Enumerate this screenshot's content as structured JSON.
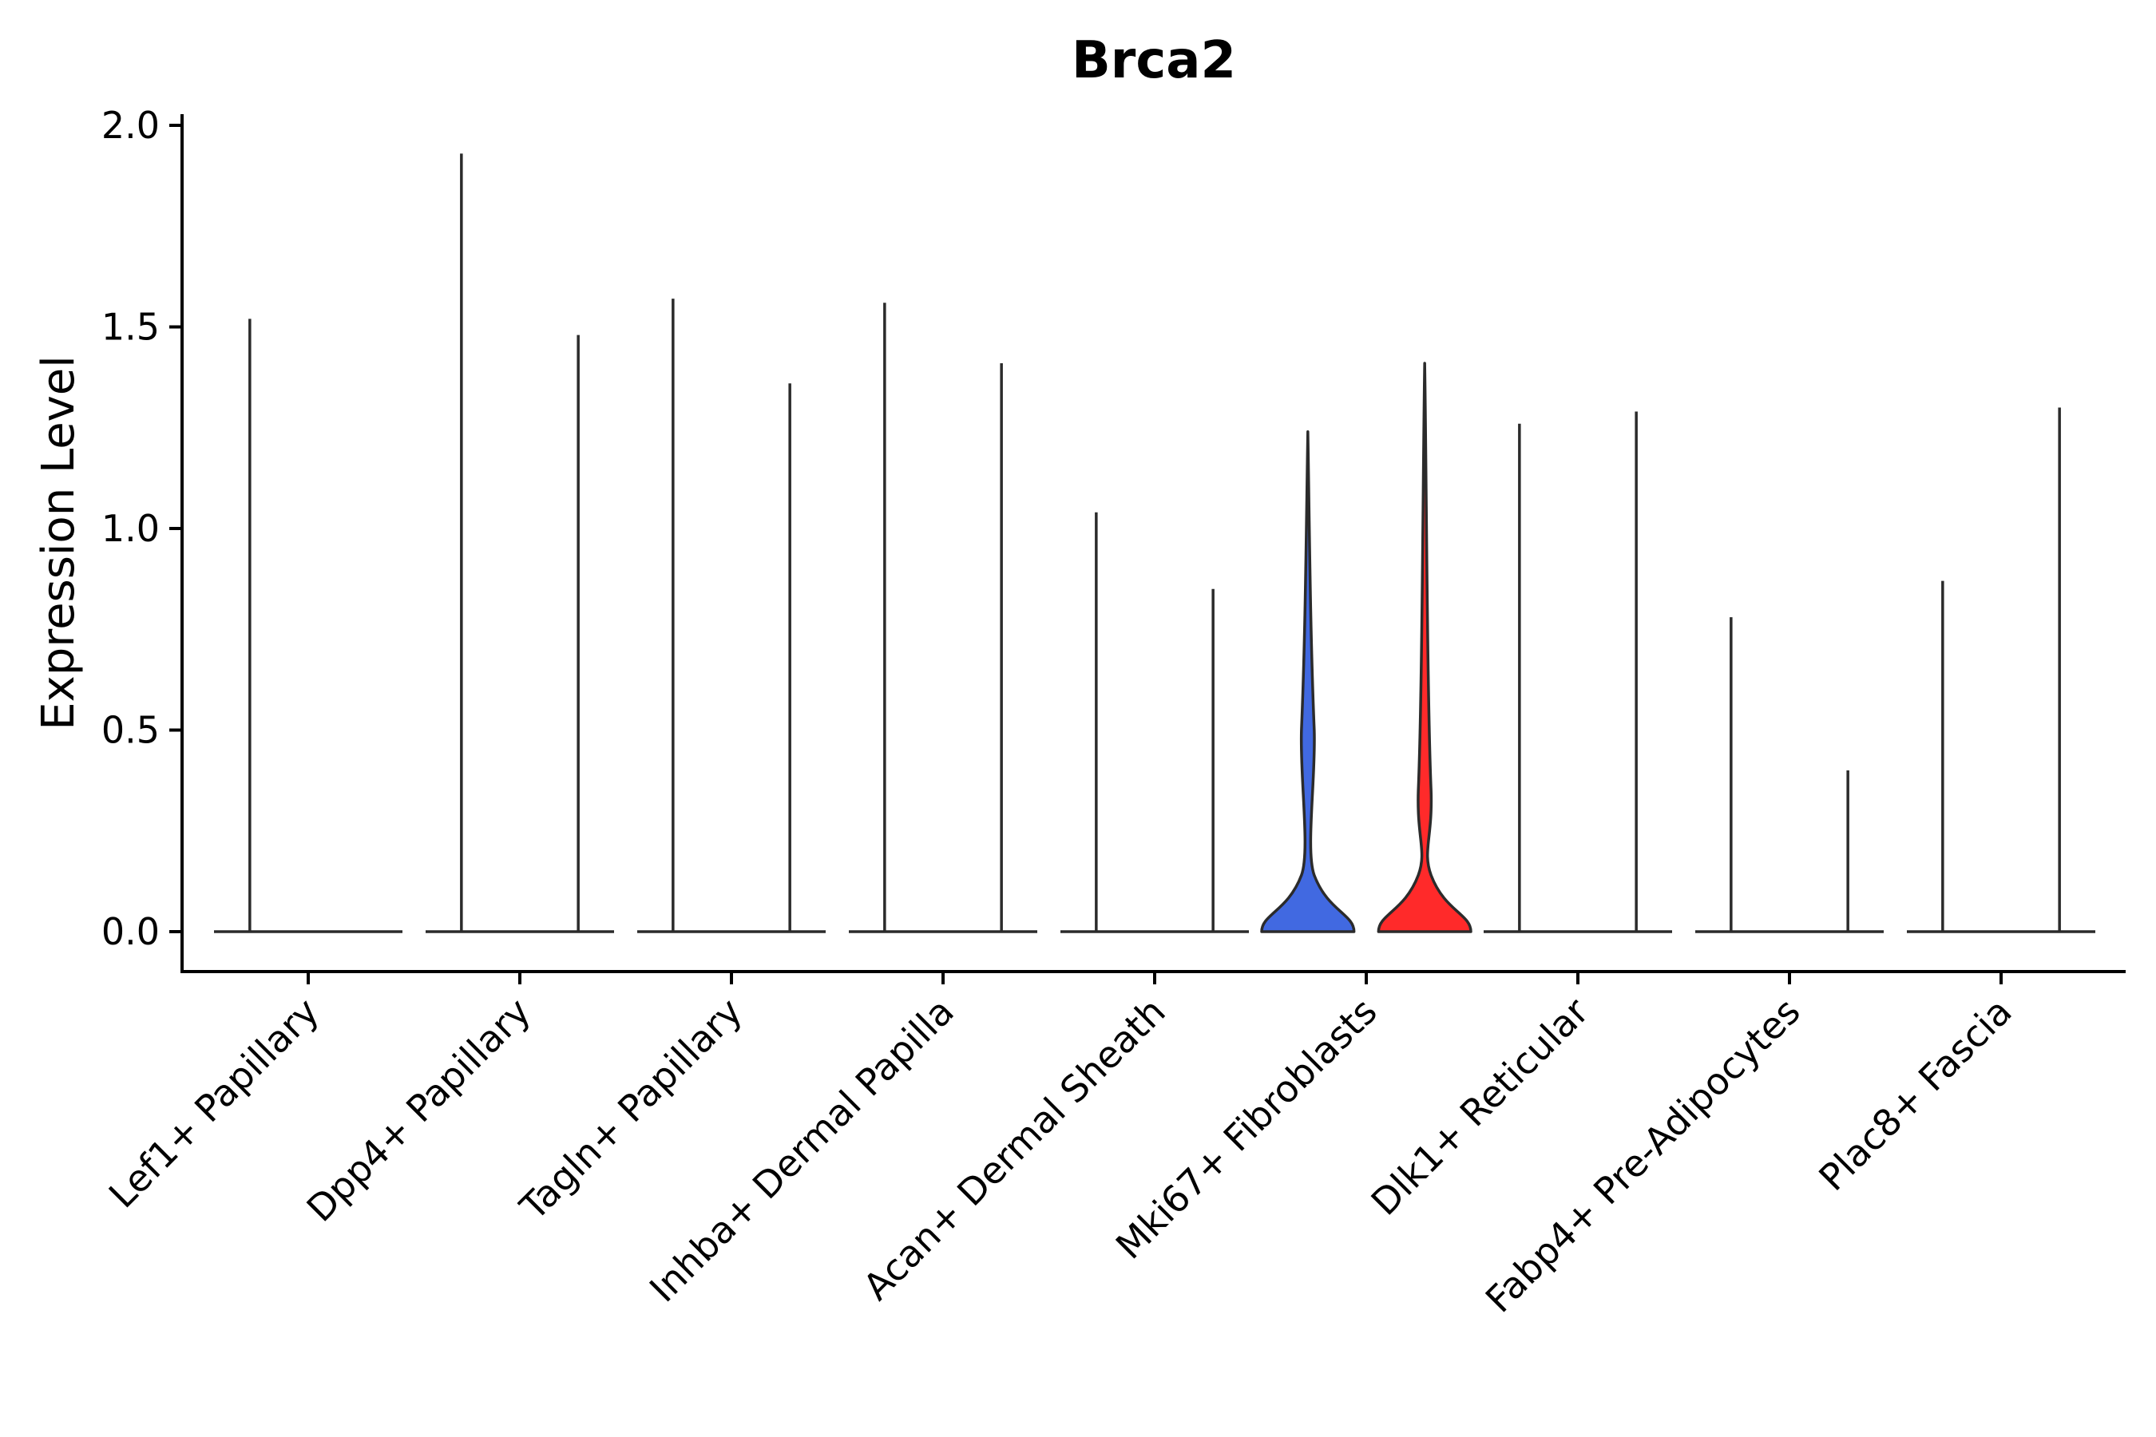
{
  "chart_data": {
    "type": "violin",
    "title": "Brca2",
    "xlabel": "",
    "ylabel": "Expression Level",
    "ylim": [
      -0.1,
      2.02
    ],
    "yticks": [
      0.0,
      0.5,
      1.0,
      1.5,
      2.0
    ],
    "ytick_labels": [
      "0.0",
      "0.5",
      "1.0",
      "1.5",
      "2.0"
    ],
    "categories": [
      "Lef1+ Papillary",
      "Dpp4+ Papillary",
      "Tagln+ Papillary",
      "Inhba+ Dermal Papilla",
      "Acan+ Dermal Sheath",
      "Mki67+ Fibroblasts",
      "Dlk1+ Reticular",
      "Fabp4+ Pre-Adipocytes",
      "Plac8+ Fascia"
    ],
    "split_violins": [
      {
        "category": "Lef1+ Papillary",
        "left_max": 1.52,
        "right_max": 0.0
      },
      {
        "category": "Dpp4+ Papillary",
        "left_max": 1.93,
        "right_max": 1.48
      },
      {
        "category": "Tagln+ Papillary",
        "left_max": 1.57,
        "right_max": 1.36
      },
      {
        "category": "Inhba+ Dermal Papilla",
        "left_max": 1.56,
        "right_max": 1.41
      },
      {
        "category": "Acan+ Dermal Sheath",
        "left_max": 1.04,
        "right_max": 0.85
      },
      {
        "category": "Mki67+ Fibroblasts",
        "left_max": 1.24,
        "right_max": 1.41,
        "left_color": "#4169E1",
        "right_color": "#FF2A2A",
        "left_mode": 0.5,
        "right_mode": 0.35
      },
      {
        "category": "Dlk1+ Reticular",
        "left_max": 1.26,
        "right_max": 1.29
      },
      {
        "category": "Fabp4+ Pre-Adipocytes",
        "left_max": 0.78,
        "right_max": 0.4
      },
      {
        "category": "Plac8+ Fascia",
        "left_max": 0.87,
        "right_max": 1.3
      }
    ],
    "colors": {
      "group1": "#4169E1",
      "group2": "#FF2A2A",
      "outline": "#2b2b2b"
    }
  }
}
